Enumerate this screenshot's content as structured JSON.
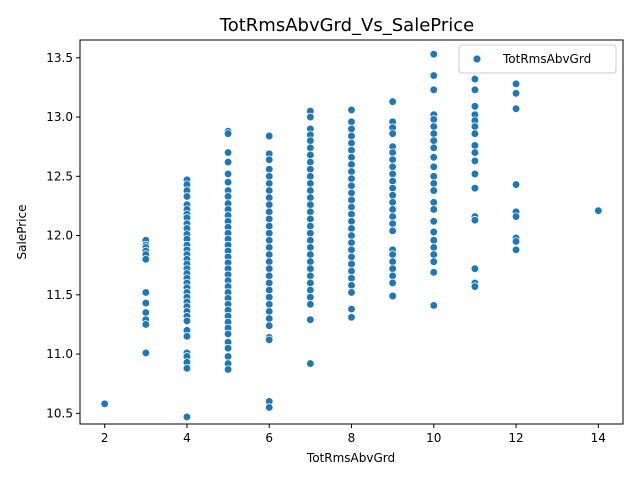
{
  "chart_data": {
    "type": "scatter",
    "title": "TotRmsAbvGrd_Vs_SalePrice",
    "xlabel": "TotRmsAbvGrd",
    "ylabel": "SalePrice",
    "xlim": [
      1.4,
      14.6
    ],
    "ylim": [
      10.41,
      13.65
    ],
    "xticks": [
      2,
      4,
      6,
      8,
      10,
      12,
      14
    ],
    "yticks": [
      10.5,
      11.0,
      11.5,
      12.0,
      12.5,
      13.0,
      13.5
    ],
    "ytick_labels": [
      "10.5",
      "11.0",
      "11.5",
      "12.0",
      "12.5",
      "13.0",
      "13.5"
    ],
    "legend": {
      "placement": "upper-right",
      "entries": [
        "TotRmsAbvGrd"
      ]
    },
    "grid": false,
    "series": [
      {
        "name": "TotRmsAbvGrd",
        "color": "#1f77b4",
        "points": [
          [
            2,
            10.58
          ],
          [
            3,
            11.96
          ],
          [
            3,
            11.92
          ],
          [
            3,
            11.9
          ],
          [
            3,
            11.87
          ],
          [
            3,
            11.84
          ],
          [
            3,
            11.8
          ],
          [
            3,
            11.52
          ],
          [
            3,
            11.43
          ],
          [
            3,
            11.35
          ],
          [
            3,
            11.29
          ],
          [
            3,
            11.25
          ],
          [
            3,
            11.01
          ],
          [
            4,
            12.47
          ],
          [
            4,
            12.43
          ],
          [
            4,
            12.38
          ],
          [
            4,
            12.33
          ],
          [
            4,
            12.26
          ],
          [
            4,
            12.22
          ],
          [
            4,
            12.18
          ],
          [
            4,
            12.15
          ],
          [
            4,
            12.1
          ],
          [
            4,
            12.06
          ],
          [
            4,
            12.01
          ],
          [
            4,
            11.97
          ],
          [
            4,
            11.92
          ],
          [
            4,
            11.88
          ],
          [
            4,
            11.84
          ],
          [
            4,
            11.8
          ],
          [
            4,
            11.76
          ],
          [
            4,
            11.72
          ],
          [
            4,
            11.68
          ],
          [
            4,
            11.64
          ],
          [
            4,
            11.6
          ],
          [
            4,
            11.56
          ],
          [
            4,
            11.52
          ],
          [
            4,
            11.48
          ],
          [
            4,
            11.44
          ],
          [
            4,
            11.4
          ],
          [
            4,
            11.36
          ],
          [
            4,
            11.32
          ],
          [
            4,
            11.28
          ],
          [
            4,
            11.2
          ],
          [
            4,
            11.15
          ],
          [
            4,
            11.01
          ],
          [
            4,
            10.98
          ],
          [
            4,
            10.93
          ],
          [
            4,
            10.88
          ],
          [
            4,
            10.47
          ],
          [
            5,
            12.88
          ],
          [
            5,
            12.86
          ],
          [
            5,
            12.7
          ],
          [
            5,
            12.62
          ],
          [
            5,
            12.52
          ],
          [
            5,
            12.45
          ],
          [
            5,
            12.38
          ],
          [
            5,
            12.33
          ],
          [
            5,
            12.27
          ],
          [
            5,
            12.22
          ],
          [
            5,
            12.17
          ],
          [
            5,
            12.12
          ],
          [
            5,
            12.07
          ],
          [
            5,
            12.02
          ],
          [
            5,
            11.97
          ],
          [
            5,
            11.92
          ],
          [
            5,
            11.87
          ],
          [
            5,
            11.82
          ],
          [
            5,
            11.77
          ],
          [
            5,
            11.72
          ],
          [
            5,
            11.67
          ],
          [
            5,
            11.62
          ],
          [
            5,
            11.57
          ],
          [
            5,
            11.52
          ],
          [
            5,
            11.47
          ],
          [
            5,
            11.42
          ],
          [
            5,
            11.37
          ],
          [
            5,
            11.32
          ],
          [
            5,
            11.27
          ],
          [
            5,
            11.22
          ],
          [
            5,
            11.17
          ],
          [
            5,
            11.1
          ],
          [
            5,
            11.05
          ],
          [
            5,
            10.98
          ],
          [
            5,
            10.92
          ],
          [
            5,
            10.87
          ],
          [
            6,
            12.84
          ],
          [
            6,
            12.69
          ],
          [
            6,
            12.64
          ],
          [
            6,
            12.56
          ],
          [
            6,
            12.5
          ],
          [
            6,
            12.44
          ],
          [
            6,
            12.38
          ],
          [
            6,
            12.32
          ],
          [
            6,
            12.26
          ],
          [
            6,
            12.2
          ],
          [
            6,
            12.14
          ],
          [
            6,
            12.08
          ],
          [
            6,
            12.02
          ],
          [
            6,
            11.96
          ],
          [
            6,
            11.9
          ],
          [
            6,
            11.84
          ],
          [
            6,
            11.78
          ],
          [
            6,
            11.72
          ],
          [
            6,
            11.66
          ],
          [
            6,
            11.6
          ],
          [
            6,
            11.54
          ],
          [
            6,
            11.48
          ],
          [
            6,
            11.42
          ],
          [
            6,
            11.36
          ],
          [
            6,
            11.3
          ],
          [
            6,
            11.24
          ],
          [
            6,
            11.14
          ],
          [
            6,
            11.12
          ],
          [
            6,
            10.6
          ],
          [
            6,
            10.55
          ],
          [
            7,
            13.05
          ],
          [
            7,
            13.0
          ],
          [
            7,
            12.9
          ],
          [
            7,
            12.85
          ],
          [
            7,
            12.8
          ],
          [
            7,
            12.74
          ],
          [
            7,
            12.68
          ],
          [
            7,
            12.62
          ],
          [
            7,
            12.56
          ],
          [
            7,
            12.5
          ],
          [
            7,
            12.44
          ],
          [
            7,
            12.38
          ],
          [
            7,
            12.32
          ],
          [
            7,
            12.26
          ],
          [
            7,
            12.2
          ],
          [
            7,
            12.14
          ],
          [
            7,
            12.08
          ],
          [
            7,
            12.02
          ],
          [
            7,
            11.96
          ],
          [
            7,
            11.9
          ],
          [
            7,
            11.84
          ],
          [
            7,
            11.78
          ],
          [
            7,
            11.72
          ],
          [
            7,
            11.66
          ],
          [
            7,
            11.6
          ],
          [
            7,
            11.54
          ],
          [
            7,
            11.48
          ],
          [
            7,
            11.42
          ],
          [
            7,
            11.29
          ],
          [
            7,
            10.92
          ],
          [
            8,
            13.06
          ],
          [
            8,
            12.96
          ],
          [
            8,
            12.9
          ],
          [
            8,
            12.84
          ],
          [
            8,
            12.78
          ],
          [
            8,
            12.72
          ],
          [
            8,
            12.66
          ],
          [
            8,
            12.6
          ],
          [
            8,
            12.54
          ],
          [
            8,
            12.48
          ],
          [
            8,
            12.42
          ],
          [
            8,
            12.36
          ],
          [
            8,
            12.3
          ],
          [
            8,
            12.24
          ],
          [
            8,
            12.18
          ],
          [
            8,
            12.12
          ],
          [
            8,
            12.06
          ],
          [
            8,
            12.0
          ],
          [
            8,
            11.94
          ],
          [
            8,
            11.88
          ],
          [
            8,
            11.82
          ],
          [
            8,
            11.76
          ],
          [
            8,
            11.7
          ],
          [
            8,
            11.64
          ],
          [
            8,
            11.58
          ],
          [
            8,
            11.52
          ],
          [
            8,
            11.38
          ],
          [
            8,
            11.31
          ],
          [
            9,
            13.13
          ],
          [
            9,
            12.96
          ],
          [
            9,
            12.91
          ],
          [
            9,
            12.86
          ],
          [
            9,
            12.75
          ],
          [
            9,
            12.7
          ],
          [
            9,
            12.64
          ],
          [
            9,
            12.58
          ],
          [
            9,
            12.52
          ],
          [
            9,
            12.46
          ],
          [
            9,
            12.4
          ],
          [
            9,
            12.34
          ],
          [
            9,
            12.28
          ],
          [
            9,
            12.22
          ],
          [
            9,
            12.16
          ],
          [
            9,
            12.1
          ],
          [
            9,
            12.04
          ],
          [
            9,
            11.88
          ],
          [
            9,
            11.84
          ],
          [
            9,
            11.78
          ],
          [
            9,
            11.72
          ],
          [
            9,
            11.66
          ],
          [
            9,
            11.6
          ],
          [
            9,
            11.49
          ],
          [
            10,
            13.53
          ],
          [
            10,
            13.35
          ],
          [
            10,
            13.23
          ],
          [
            10,
            13.02
          ],
          [
            10,
            12.98
          ],
          [
            10,
            12.92
          ],
          [
            10,
            12.86
          ],
          [
            10,
            12.8
          ],
          [
            10,
            12.74
          ],
          [
            10,
            12.66
          ],
          [
            10,
            12.58
          ],
          [
            10,
            12.5
          ],
          [
            10,
            12.44
          ],
          [
            10,
            12.38
          ],
          [
            10,
            12.28
          ],
          [
            10,
            12.22
          ],
          [
            10,
            12.12
          ],
          [
            10,
            12.03
          ],
          [
            10,
            11.96
          ],
          [
            10,
            11.9
          ],
          [
            10,
            11.84
          ],
          [
            10,
            11.78
          ],
          [
            10,
            11.69
          ],
          [
            10,
            11.41
          ],
          [
            11,
            13.32
          ],
          [
            11,
            13.23
          ],
          [
            11,
            13.09
          ],
          [
            11,
            13.02
          ],
          [
            11,
            12.97
          ],
          [
            11,
            12.92
          ],
          [
            11,
            12.86
          ],
          [
            11,
            12.76
          ],
          [
            11,
            12.7
          ],
          [
            11,
            12.63
          ],
          [
            11,
            12.52
          ],
          [
            11,
            12.4
          ],
          [
            11,
            12.16
          ],
          [
            11,
            12.13
          ],
          [
            11,
            11.72
          ],
          [
            11,
            11.6
          ],
          [
            11,
            11.57
          ],
          [
            12,
            13.28
          ],
          [
            12,
            13.2
          ],
          [
            12,
            13.07
          ],
          [
            12,
            12.43
          ],
          [
            12,
            12.2
          ],
          [
            12,
            12.16
          ],
          [
            12,
            11.98
          ],
          [
            12,
            11.95
          ],
          [
            12,
            11.88
          ],
          [
            14,
            12.21
          ]
        ]
      }
    ]
  }
}
